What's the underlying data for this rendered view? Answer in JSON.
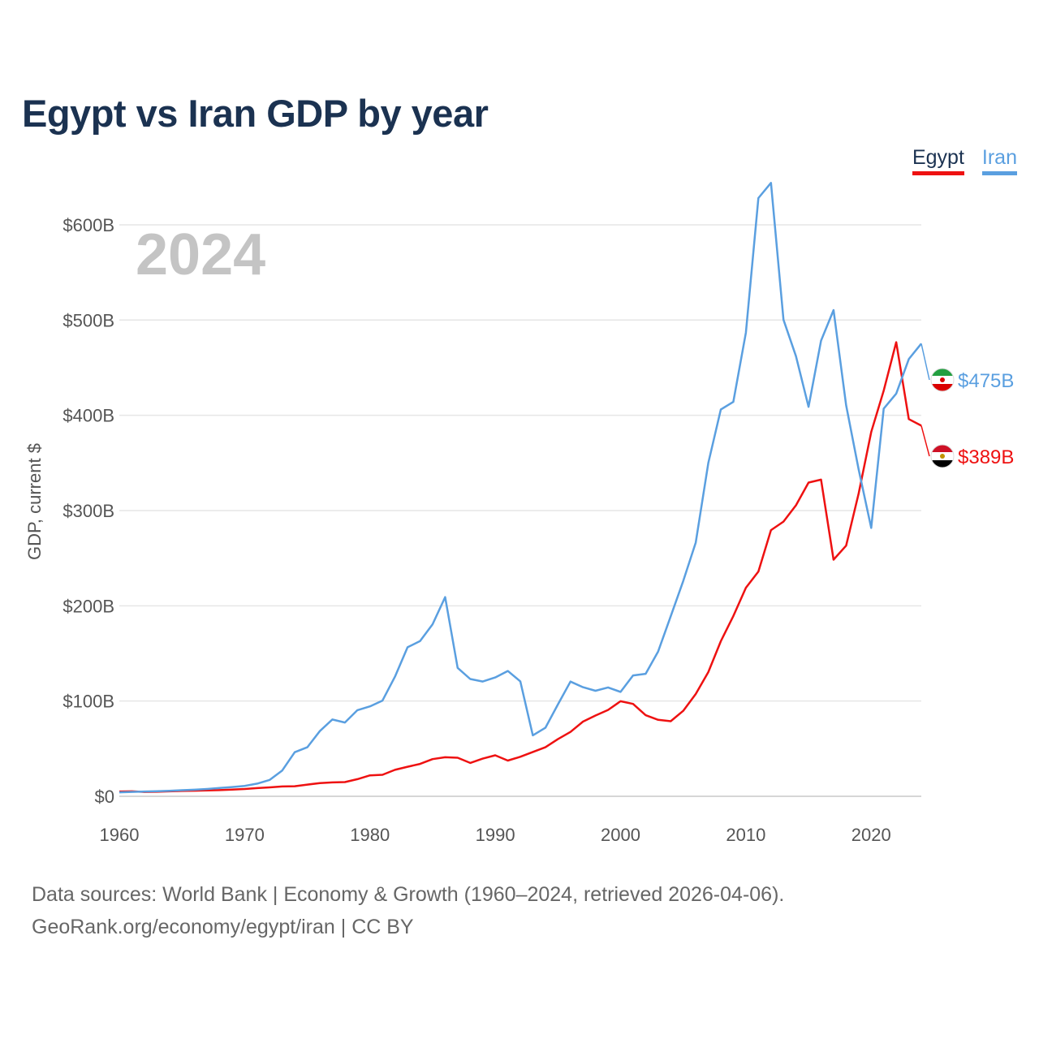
{
  "chart_data": {
    "type": "line",
    "title": "Egypt vs Iran GDP by year",
    "year_overlay": "2024",
    "xlabel": "",
    "ylabel": "GDP, current $",
    "xlim": [
      1960,
      2024
    ],
    "ylim": [
      0,
      640
    ],
    "unit": "billion US$",
    "grid": true,
    "legend_position": "top-right",
    "x_ticks": [
      {
        "value": 1960,
        "label": "1960"
      },
      {
        "value": 1970,
        "label": "1970"
      },
      {
        "value": 1980,
        "label": "1980"
      },
      {
        "value": 1990,
        "label": "1990"
      },
      {
        "value": 2000,
        "label": "2000"
      },
      {
        "value": 2010,
        "label": "2010"
      },
      {
        "value": 2020,
        "label": "2020"
      }
    ],
    "y_ticks": [
      {
        "value": 0,
        "label": "$0"
      },
      {
        "value": 100,
        "label": "$100B"
      },
      {
        "value": 200,
        "label": "$200B"
      },
      {
        "value": 300,
        "label": "$300B"
      },
      {
        "value": 400,
        "label": "$400B"
      },
      {
        "value": 500,
        "label": "$500B"
      },
      {
        "value": 600,
        "label": "$600B"
      }
    ],
    "x": [
      1960,
      1961,
      1962,
      1963,
      1964,
      1965,
      1966,
      1967,
      1968,
      1969,
      1970,
      1971,
      1972,
      1973,
      1974,
      1975,
      1976,
      1977,
      1978,
      1979,
      1980,
      1981,
      1982,
      1983,
      1984,
      1985,
      1986,
      1987,
      1988,
      1989,
      1990,
      1991,
      1992,
      1993,
      1994,
      1995,
      1996,
      1997,
      1998,
      1999,
      2000,
      2001,
      2002,
      2003,
      2004,
      2005,
      2006,
      2007,
      2008,
      2009,
      2010,
      2011,
      2012,
      2013,
      2014,
      2015,
      2016,
      2017,
      2018,
      2019,
      2020,
      2021,
      2022,
      2023,
      2024
    ],
    "series": [
      {
        "name": "Egypt",
        "color": "#ee1111",
        "end_label": "$389B",
        "flag_icon": "egypt-flag-icon",
        "values": [
          5.0,
          5.2,
          4.6,
          4.8,
          5.2,
          5.6,
          5.9,
          6.1,
          6.5,
          7.1,
          7.7,
          8.6,
          9.4,
          10.3,
          10.6,
          12.3,
          13.9,
          14.6,
          14.9,
          18.0,
          22.0,
          22.6,
          27.8,
          31.0,
          34.0,
          39.0,
          41.0,
          40.5,
          35.0,
          39.5,
          43.0,
          37.5,
          41.5,
          46.5,
          51.5,
          60.0,
          67.6,
          78.4,
          84.8,
          90.7,
          99.8,
          97.0,
          85.1,
          80.3,
          78.8,
          89.7,
          107.4,
          130.4,
          162.8,
          189.2,
          218.9,
          236.0,
          279.4,
          288.4,
          305.5,
          329.4,
          332.4,
          248.4,
          263.2,
          317.9,
          382.5,
          425.9,
          476.7,
          396.0,
          389.1
        ]
      },
      {
        "name": "Iran",
        "color": "#5a9fe0",
        "end_label": "$475B",
        "flag_icon": "iran-flag-icon",
        "values": [
          4.2,
          4.6,
          5.0,
          5.3,
          5.8,
          6.4,
          6.9,
          7.7,
          8.7,
          9.7,
          10.9,
          13.3,
          17.2,
          27.1,
          46.3,
          51.5,
          68.4,
          80.6,
          77.5,
          90.4,
          94.4,
          100.5,
          125.6,
          156.5,
          162.9,
          180.6,
          209.1,
          134.8,
          123.1,
          120.5,
          124.8,
          131.6,
          120.7,
          64.0,
          71.9,
          96.4,
          120.4,
          114.5,
          110.8,
          114.3,
          109.6,
          126.9,
          128.6,
          152.0,
          189.0,
          226.0,
          266.3,
          349.9,
          406.1,
          414.1,
          486.8,
          628.1,
          644.0,
          500.4,
          462.1,
          408.9,
          478.3,
          510.5,
          410.5,
          343.2,
          281.7,
          407.0,
          422.8,
          459.0,
          475.3
        ]
      }
    ],
    "legend": [
      {
        "name": "Egypt",
        "color": "#ee1111"
      },
      {
        "name": "Iran",
        "color": "#5a9fe0"
      }
    ]
  },
  "source_note": {
    "line1": "Data sources: World Bank | Economy & Growth (1960–2024, retrieved 2026-04-06).",
    "line2": "GeoRank.org/economy/egypt/iran | CC BY"
  }
}
